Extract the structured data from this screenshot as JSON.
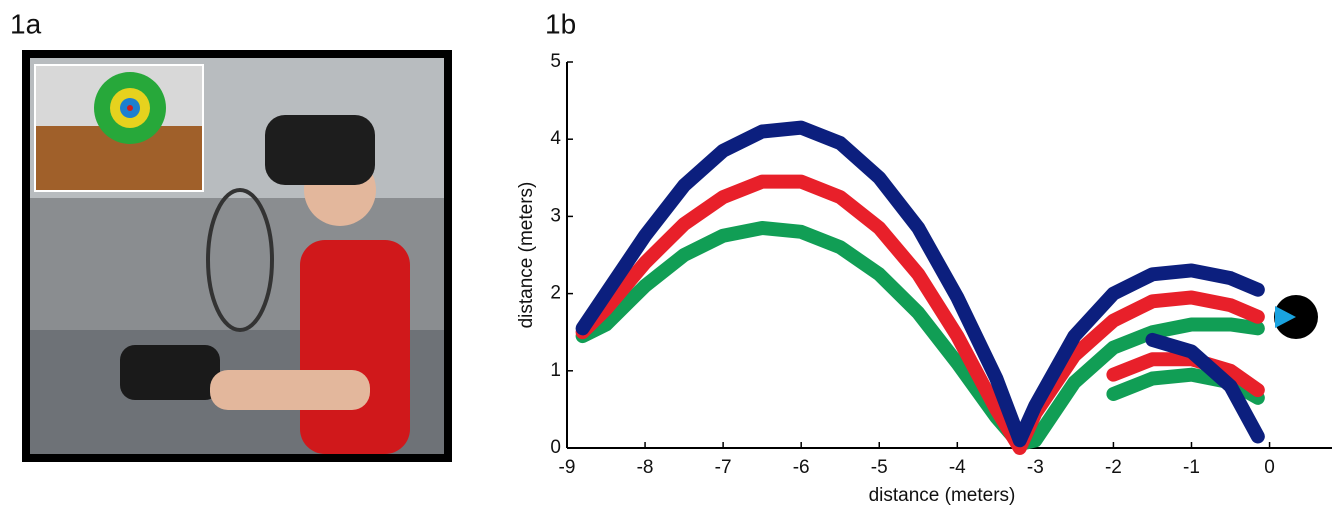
{
  "panels": {
    "a": "1a",
    "b": "1b"
  },
  "chart_data": {
    "type": "line",
    "xlabel": "distance (meters)",
    "ylabel": "distance (meters)",
    "x": [
      -8.8,
      -8.5,
      -8,
      -7.5,
      -7,
      -6.5,
      -6,
      -5.5,
      -5,
      -4.5,
      -4,
      -3.5,
      -3.2,
      -3,
      -2.5,
      -2,
      -1.5,
      -1,
      -0.5,
      -0.15
    ],
    "series": [
      {
        "color": "#119e55",
        "values": [
          1.45,
          1.6,
          2.1,
          2.5,
          2.75,
          2.85,
          2.8,
          2.6,
          2.25,
          1.75,
          1.1,
          0.4,
          0.05,
          0.1,
          0.85,
          1.3,
          1.5,
          1.6,
          1.6,
          1.55
        ]
      },
      {
        "color": "#119e55",
        "values": [
          null,
          null,
          null,
          null,
          null,
          null,
          null,
          null,
          null,
          null,
          null,
          null,
          null,
          null,
          null,
          0.7,
          0.9,
          0.95,
          0.85,
          0.65
        ]
      },
      {
        "color": "#e8202a",
        "values": [
          1.5,
          1.8,
          2.4,
          2.9,
          3.25,
          3.45,
          3.45,
          3.25,
          2.85,
          2.25,
          1.45,
          0.5,
          0.0,
          0.45,
          1.2,
          1.65,
          1.9,
          1.95,
          1.85,
          1.7
        ]
      },
      {
        "color": "#e8202a",
        "values": [
          null,
          null,
          null,
          null,
          null,
          null,
          null,
          null,
          null,
          null,
          null,
          null,
          null,
          null,
          null,
          0.95,
          1.15,
          1.15,
          1.0,
          0.75
        ]
      },
      {
        "color": "#0c1f7e",
        "values": [
          1.55,
          2.0,
          2.75,
          3.4,
          3.85,
          4.1,
          4.15,
          3.95,
          3.5,
          2.85,
          1.95,
          0.9,
          0.1,
          0.55,
          1.45,
          2.0,
          2.25,
          2.3,
          2.2,
          2.05
        ]
      },
      {
        "color": "#0c1f7e",
        "values": [
          null,
          null,
          null,
          null,
          null,
          null,
          null,
          null,
          null,
          null,
          null,
          null,
          null,
          null,
          null,
          null,
          1.4,
          1.25,
          0.8,
          0.15
        ]
      }
    ],
    "xlim": [
      -9,
      0.8
    ],
    "ylim": [
      0,
      5
    ],
    "xticks": [
      -9,
      -8,
      -7,
      -6,
      -5,
      -4,
      -3,
      -2,
      -1,
      0
    ],
    "yticks": [
      0,
      1,
      2,
      3,
      4,
      5
    ]
  }
}
